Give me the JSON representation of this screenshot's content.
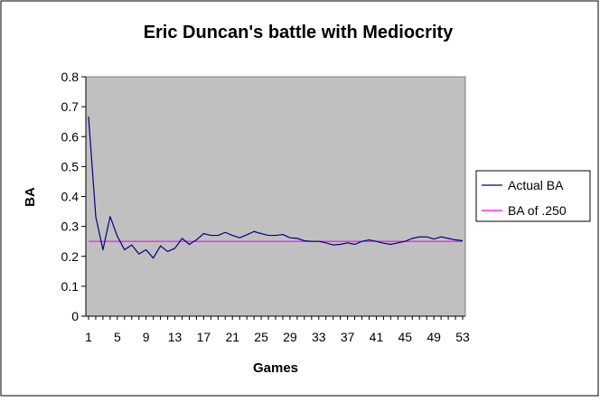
{
  "chart_data": {
    "type": "line",
    "title": "Eric Duncan's battle with Mediocrity",
    "xlabel": "Games",
    "ylabel": "BA",
    "ylim": [
      0,
      0.8
    ],
    "xlim": [
      1,
      53
    ],
    "grid": false,
    "legend_position": "right",
    "plot_background": "#c0c0c0",
    "x_tick_labels": [
      "1",
      "5",
      "9",
      "13",
      "17",
      "21",
      "25",
      "29",
      "33",
      "37",
      "41",
      "45",
      "49",
      "53"
    ],
    "y_tick_labels": [
      "0",
      "0.1",
      "0.2",
      "0.3",
      "0.4",
      "0.5",
      "0.6",
      "0.7",
      "0.8"
    ],
    "series": [
      {
        "name": "Actual BA",
        "color": "#000080",
        "x": [
          1,
          2,
          3,
          4,
          5,
          6,
          7,
          8,
          9,
          10,
          11,
          12,
          13,
          14,
          15,
          16,
          17,
          18,
          19,
          20,
          21,
          22,
          23,
          24,
          25,
          26,
          27,
          28,
          29,
          30,
          31,
          32,
          33,
          34,
          35,
          36,
          37,
          38,
          39,
          40,
          41,
          42,
          43,
          44,
          45,
          46,
          47,
          48,
          49,
          50,
          51,
          52,
          53
        ],
        "values": [
          0.667,
          0.333,
          0.222,
          0.333,
          0.267,
          0.222,
          0.238,
          0.208,
          0.222,
          0.194,
          0.235,
          0.216,
          0.227,
          0.26,
          0.24,
          0.255,
          0.276,
          0.27,
          0.27,
          0.28,
          0.27,
          0.262,
          0.272,
          0.283,
          0.276,
          0.27,
          0.27,
          0.273,
          0.262,
          0.26,
          0.252,
          0.25,
          0.25,
          0.245,
          0.238,
          0.24,
          0.245,
          0.24,
          0.25,
          0.255,
          0.25,
          0.244,
          0.24,
          0.245,
          0.25,
          0.26,
          0.265,
          0.265,
          0.258,
          0.265,
          0.26,
          0.255,
          0.252
        ]
      },
      {
        "name": "BA of .250",
        "color": "#ff00ff",
        "x": [
          1,
          53
        ],
        "values": [
          0.25,
          0.25
        ]
      }
    ]
  }
}
